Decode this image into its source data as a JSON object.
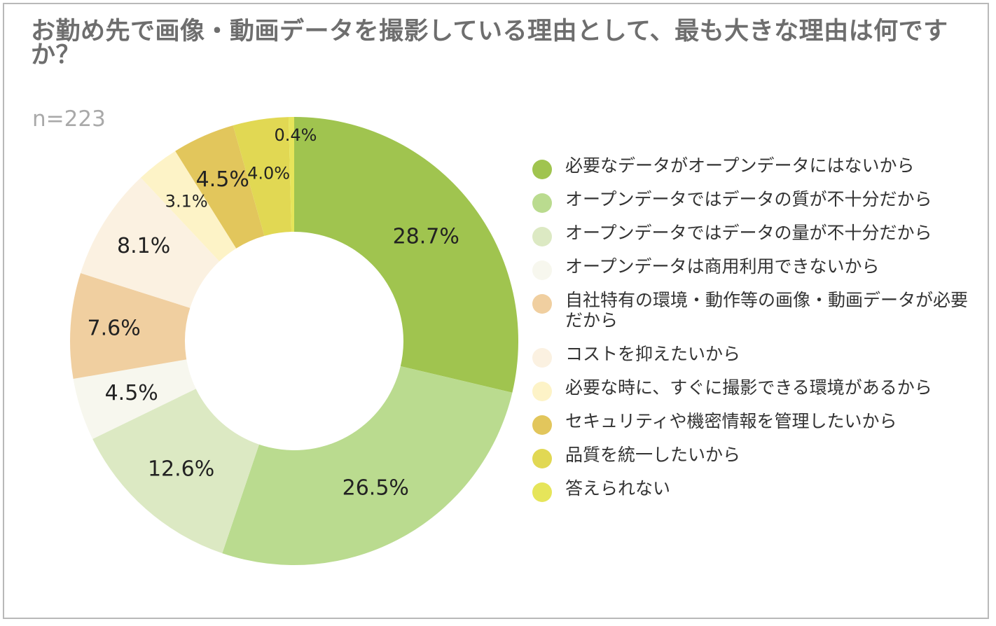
{
  "chart_data": {
    "type": "donut",
    "title": "お勤め先で画像・動画データを撮影している理由として、最も大きな理由は何ですか？",
    "subtitle": "n=223",
    "legend_position": "right",
    "categories": [
      "必要なデータがオープンデータにはないから",
      "オープンデータではデータの質が不十分だから",
      "オープンデータではデータの量が不十分だから",
      "オープンデータは商用利用できないから",
      "自社特有の環境・動作等の画像・動画データが必要だから",
      "コストを抑えたいから",
      "必要な時に、すぐに撮影できる環境があるから",
      "セキュリティや機密情報を管理したいから",
      "品質を統一したいから",
      "答えられない"
    ],
    "values": [
      28.7,
      26.5,
      12.6,
      4.5,
      7.6,
      8.1,
      3.1,
      4.5,
      4.0,
      0.4
    ],
    "data_labels": [
      "28.7%",
      "26.5%",
      "12.6%",
      "4.5%",
      "7.6%",
      "8.1%",
      "3.1%",
      "4.5%",
      "4.0%",
      "0.4%"
    ],
    "colors": [
      "#a0c44f",
      "#badb8f",
      "#dce9c3",
      "#f7f7ee",
      "#f0cfa0",
      "#fbf1e1",
      "#fdf3c7",
      "#e2c65c",
      "#e1d853",
      "#e6e55a"
    ]
  }
}
